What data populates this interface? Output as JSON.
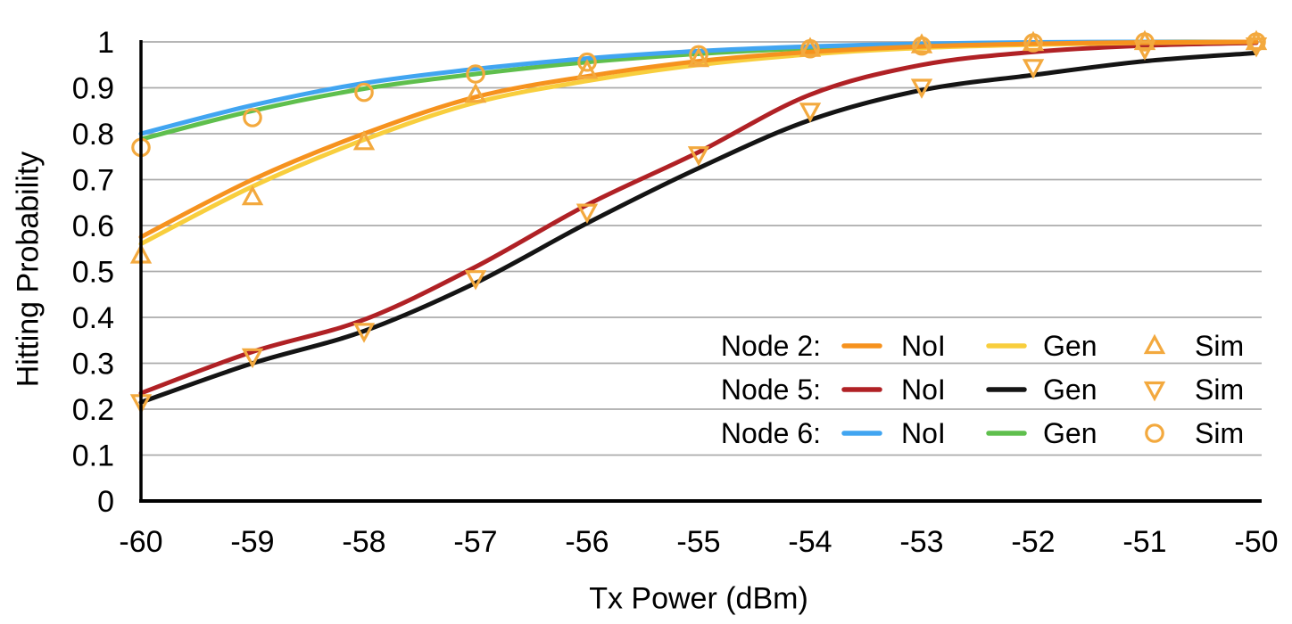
{
  "figure": {
    "background": "#FFFFFF",
    "grid_color": "#ABABAB",
    "axis_color": "#000000",
    "text_color": "#000000"
  },
  "axes": {
    "x_label": "Tx Power (dBm)",
    "y_label": "Hitting Probability",
    "x_ticks": [
      "-60",
      "-59",
      "-58",
      "-57",
      "-56",
      "-55",
      "-54",
      "-53",
      "-52",
      "-51",
      "-50"
    ],
    "y_ticks": [
      "1",
      "0.9",
      "0.8",
      "0.7",
      "0.6",
      "0.5",
      "0.4",
      "0.3",
      "0.2",
      "0.1",
      "0"
    ]
  },
  "chart_data": {
    "type": "line",
    "title": "",
    "xlabel": "Tx Power (dBm)",
    "ylabel": "Hitting Probability",
    "xlim": [
      -60,
      -50
    ],
    "ylim": [
      0,
      1
    ],
    "grid": "horizontal",
    "x": [
      -60,
      -59,
      -58,
      -57,
      -56,
      -55,
      -54,
      -53,
      -52,
      -51,
      -50
    ],
    "series": [
      {
        "name": "Node 2 NoI",
        "node": "Node 2",
        "variant": "NoI",
        "style": "line",
        "color": "#F6921E",
        "values": [
          0.575,
          0.7,
          0.8,
          0.88,
          0.925,
          0.958,
          0.978,
          0.99,
          0.996,
          0.999,
          1.0
        ]
      },
      {
        "name": "Node 2 Gen",
        "node": "Node 2",
        "variant": "Gen",
        "style": "line",
        "color": "#F8CE3D",
        "values": [
          0.56,
          0.685,
          0.787,
          0.868,
          0.915,
          0.95,
          0.973,
          0.987,
          0.994,
          0.998,
          1.0
        ]
      },
      {
        "name": "Node 2 Sim",
        "node": "Node 2",
        "variant": "Sim",
        "style": "scatter",
        "marker": "triangle-up",
        "color": "#F3A93E",
        "values": [
          0.535,
          0.662,
          0.782,
          0.885,
          0.937,
          0.963,
          0.985,
          0.993,
          0.998,
          1.0,
          1.0
        ]
      },
      {
        "name": "Node 5 NoI",
        "node": "Node 5",
        "variant": "NoI",
        "style": "line",
        "color": "#B02125",
        "values": [
          0.235,
          0.325,
          0.395,
          0.51,
          0.645,
          0.76,
          0.885,
          0.95,
          0.978,
          0.992,
          0.998
        ]
      },
      {
        "name": "Node 5 Gen",
        "node": "Node 5",
        "variant": "Gen",
        "style": "line",
        "color": "#141414",
        "values": [
          0.215,
          0.3,
          0.37,
          0.475,
          0.605,
          0.725,
          0.83,
          0.895,
          0.928,
          0.958,
          0.976
        ]
      },
      {
        "name": "Node 5 Sim",
        "node": "Node 5",
        "variant": "Sim",
        "style": "scatter",
        "marker": "triangle-down",
        "color": "#F3A93E",
        "values": [
          0.215,
          0.315,
          0.37,
          0.485,
          0.63,
          0.755,
          0.85,
          0.902,
          0.945,
          0.985,
          0.992
        ]
      },
      {
        "name": "Node 6 NoI",
        "node": "Node 6",
        "variant": "NoI",
        "style": "line",
        "color": "#41A5F1",
        "values": [
          0.8,
          0.862,
          0.91,
          0.941,
          0.964,
          0.98,
          0.99,
          0.996,
          0.999,
          1.0,
          1.0
        ]
      },
      {
        "name": "Node 6 Gen",
        "node": "Node 6",
        "variant": "Gen",
        "style": "line",
        "color": "#5FBF4D",
        "values": [
          0.788,
          0.85,
          0.898,
          0.93,
          0.956,
          0.974,
          0.986,
          0.993,
          0.997,
          1.0,
          1.0
        ]
      },
      {
        "name": "Node 6 Sim",
        "node": "Node 6",
        "variant": "Sim",
        "style": "scatter",
        "marker": "circle",
        "color": "#F3A93E",
        "values": [
          0.77,
          0.835,
          0.89,
          0.93,
          0.956,
          0.972,
          0.985,
          0.991,
          0.998,
          1.0,
          1.0
        ]
      }
    ],
    "legend": {
      "position": "inside bottom-right",
      "rows": [
        {
          "group": "Node 2:",
          "entries": [
            {
              "label": "NoI",
              "swatch": "line",
              "color": "#F6921E"
            },
            {
              "label": "Gen",
              "swatch": "line",
              "color": "#F8CE3D"
            },
            {
              "label": "Sim",
              "swatch": "triangle-up",
              "color": "#F3A93E"
            }
          ]
        },
        {
          "group": "Node 5:",
          "entries": [
            {
              "label": "NoI",
              "swatch": "line",
              "color": "#B02125"
            },
            {
              "label": "Gen",
              "swatch": "line",
              "color": "#141414"
            },
            {
              "label": "Sim",
              "swatch": "triangle-down",
              "color": "#F3A93E"
            }
          ]
        },
        {
          "group": "Node 6:",
          "entries": [
            {
              "label": "NoI",
              "swatch": "line",
              "color": "#41A5F1"
            },
            {
              "label": "Gen",
              "swatch": "line",
              "color": "#5FBF4D"
            },
            {
              "label": "Sim",
              "swatch": "circle",
              "color": "#F3A93E"
            }
          ]
        }
      ]
    }
  }
}
